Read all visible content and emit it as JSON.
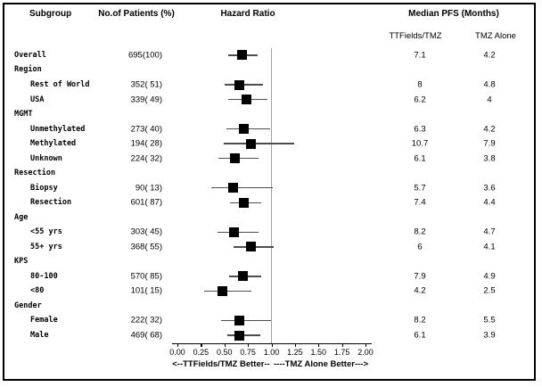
{
  "header": {
    "subgroup": "Subgroup",
    "patients": "No.of Patients (%)",
    "hazard_ratio": "Hazard Ratio",
    "median_pfs": "Median PFS (Months)",
    "arm1": "TTFields/TMZ",
    "arm2": "TMZ Alone"
  },
  "axis": {
    "min": 0,
    "max": 2,
    "tick_step": 0.25,
    "ticks": [
      "0.00",
      "0.25",
      "0.50",
      "0.75",
      "1.00",
      "1.25",
      "1.50",
      "1.75",
      "2.00"
    ],
    "reference_line": 1.0,
    "left_label": "<--TTFields/TMZ Better--",
    "right_label": "----TMZ Alone Better--->"
  },
  "colors": {
    "background": "#ffffff",
    "text": "#000000",
    "border": "#000000",
    "ci_line": "#4d4d4d",
    "square": "#000000",
    "reference_line": "#a0a0a0"
  },
  "chart_data": {
    "type": "forest",
    "title": "",
    "xlabel": "Hazard Ratio",
    "xlim": [
      0,
      2.1
    ],
    "grid": false,
    "rows": [
      {
        "label": "Overall",
        "indent": 0,
        "patients": "695(100)",
        "hr": 0.69,
        "lo": 0.54,
        "hi": 0.85,
        "pfs_ttfields": "7.1",
        "pfs_tmz": "4.2"
      },
      {
        "label": "Region",
        "indent": 0,
        "group": true
      },
      {
        "label": "Rest of World",
        "indent": 1,
        "patients": "352( 51)",
        "hr": 0.66,
        "lo": 0.5,
        "hi": 0.91,
        "pfs_ttfields": "8",
        "pfs_tmz": "4.8"
      },
      {
        "label": "USA",
        "indent": 1,
        "patients": "339( 49)",
        "hr": 0.73,
        "lo": 0.54,
        "hi": 0.96,
        "pfs_ttfields": "6.2",
        "pfs_tmz": "4"
      },
      {
        "label": "MGMT",
        "indent": 0,
        "group": true
      },
      {
        "label": "Unmethylated",
        "indent": 1,
        "patients": "273( 40)",
        "hr": 0.71,
        "lo": 0.52,
        "hi": 0.99,
        "pfs_ttfields": "6.3",
        "pfs_tmz": "4.2"
      },
      {
        "label": "Methylated",
        "indent": 1,
        "patients": "194( 28)",
        "hr": 0.78,
        "lo": 0.49,
        "hi": 1.24,
        "pfs_ttfields": "10.7",
        "pfs_tmz": "7.9"
      },
      {
        "label": "Unknown",
        "indent": 1,
        "patients": "224( 32)",
        "hr": 0.61,
        "lo": 0.44,
        "hi": 0.86,
        "pfs_ttfields": "6.1",
        "pfs_tmz": "3.8"
      },
      {
        "label": "Resection",
        "indent": 0,
        "group": true
      },
      {
        "label": "Biopsy",
        "indent": 1,
        "patients": "90( 13)",
        "hr": 0.59,
        "lo": 0.36,
        "hi": 1.01,
        "pfs_ttfields": "5.7",
        "pfs_tmz": "3.6"
      },
      {
        "label": "Resection",
        "indent": 1,
        "patients": "601( 87)",
        "hr": 0.71,
        "lo": 0.56,
        "hi": 0.89,
        "pfs_ttfields": "7.4",
        "pfs_tmz": "4.4"
      },
      {
        "label": "Age",
        "indent": 0,
        "group": true
      },
      {
        "label": "<55 yrs",
        "indent": 1,
        "patients": "303( 45)",
        "hr": 0.6,
        "lo": 0.43,
        "hi": 0.86,
        "pfs_ttfields": "8.2",
        "pfs_tmz": "4.7"
      },
      {
        "label": "55+ yrs",
        "indent": 1,
        "patients": "368( 55)",
        "hr": 0.78,
        "lo": 0.6,
        "hi": 1.02,
        "pfs_ttfields": "6",
        "pfs_tmz": "4.1"
      },
      {
        "label": "KPS",
        "indent": 0,
        "group": true
      },
      {
        "label": "80-100",
        "indent": 1,
        "patients": "570( 85)",
        "hr": 0.7,
        "lo": 0.55,
        "hi": 0.89,
        "pfs_ttfields": "7.9",
        "pfs_tmz": "4.9"
      },
      {
        "label": "<80",
        "indent": 1,
        "patients": "101( 15)",
        "hr": 0.48,
        "lo": 0.28,
        "hi": 0.79,
        "pfs_ttfields": "4.2",
        "pfs_tmz": "2.5"
      },
      {
        "label": "Gender",
        "indent": 0,
        "group": true
      },
      {
        "label": "Female",
        "indent": 1,
        "patients": "222( 32)",
        "hr": 0.66,
        "lo": 0.46,
        "hi": 1.0,
        "pfs_ttfields": "8.2",
        "pfs_tmz": "5.5"
      },
      {
        "label": "Male",
        "indent": 1,
        "patients": "469( 68)",
        "hr": 0.66,
        "lo": 0.53,
        "hi": 0.88,
        "pfs_ttfields": "6.1",
        "pfs_tmz": "3.9"
      }
    ]
  }
}
